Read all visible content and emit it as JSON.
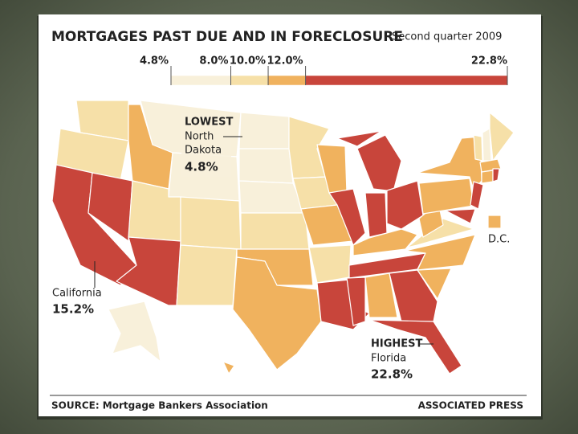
{
  "title": "MORTGAGES PAST DUE AND IN FORECLOSURE",
  "subtitle": "Second quarter 2009",
  "legend": {
    "breaks": [
      {
        "value": 4.8,
        "label": "4.8%"
      },
      {
        "value": 8.0,
        "label": "8.0%"
      },
      {
        "value": 10.0,
        "label": "10.0%"
      },
      {
        "value": 12.0,
        "label": "12.0%"
      },
      {
        "value": 22.8,
        "label": "22.8%"
      }
    ],
    "colors": [
      "#f8f0da",
      "#f6e0a8",
      "#f0b25e",
      "#c8453b"
    ]
  },
  "lowest": {
    "heading": "LOWEST",
    "state_lines": [
      "North",
      "Dakota"
    ],
    "value": {
      "value": 4.8,
      "label": "4.8%"
    }
  },
  "california": {
    "state": "California",
    "value": {
      "value": 15.2,
      "label": "15.2%"
    }
  },
  "highest": {
    "heading": "HIGHEST",
    "state": "Florida",
    "value": {
      "value": 22.8,
      "label": "22.8%"
    }
  },
  "dc_label": "D.C.",
  "footer": {
    "source": "SOURCE: Mortgage Bankers Association",
    "credit": "ASSOCIATED PRESS"
  }
}
